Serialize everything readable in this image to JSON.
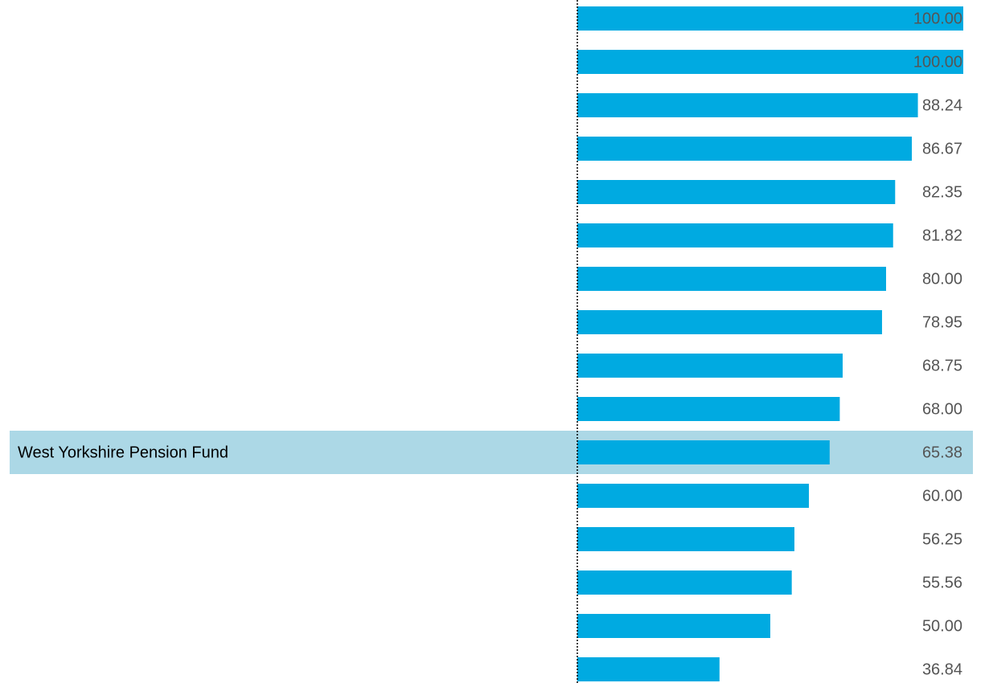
{
  "chart_data": {
    "type": "bar",
    "orientation": "horizontal",
    "categories": [
      null,
      null,
      null,
      null,
      null,
      null,
      null,
      null,
      null,
      null,
      "West Yorkshire Pension Fund",
      null,
      null,
      null,
      null,
      null
    ],
    "values": [
      100,
      100,
      88.24,
      86.67,
      82.35,
      81.82,
      80,
      78.95,
      68.75,
      68,
      65.38,
      60,
      56.25,
      55.56,
      50,
      36.84
    ],
    "value_labels": [
      "100.00",
      "100.00",
      "88.24",
      "86.67",
      "82.35",
      "81.82",
      "80.00",
      "78.95",
      "68.75",
      "68.00",
      "65.38",
      "60.00",
      "56.25",
      "55.56",
      "50.00",
      "36.84"
    ],
    "color": "#00aae1",
    "highlight_color": "#acd8e6",
    "xlim": [
      0,
      100
    ]
  }
}
